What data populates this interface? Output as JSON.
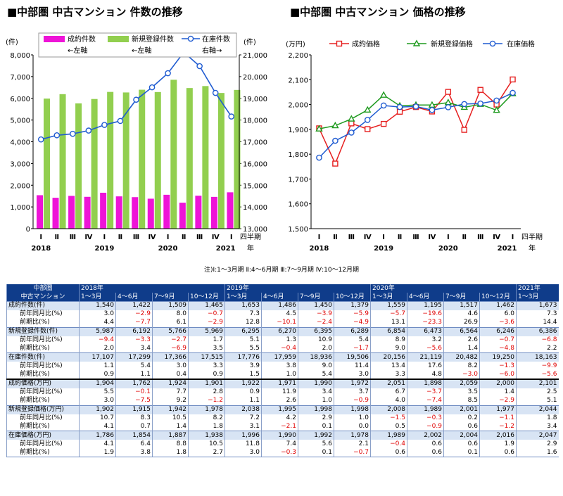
{
  "chart_data": [
    {
      "type": "bar",
      "title": "■中部圏 中古マンション 件数の推移",
      "ylabel_left": "(件)",
      "ylabel_right": "(件)",
      "ylim_left": [
        0,
        8000
      ],
      "ylim_right": [
        13000,
        21000
      ],
      "yticks_left": [
        "0",
        "1,000",
        "2,000",
        "3,000",
        "4,000",
        "5,000",
        "6,000",
        "7,000",
        "8,000"
      ],
      "yticks_right": [
        "13,000",
        "14,000",
        "15,000",
        "16,000",
        "17,000",
        "18,000",
        "19,000",
        "20,000",
        "21,000"
      ],
      "categories": [
        "Ⅰ",
        "Ⅱ",
        "Ⅲ",
        "Ⅳ",
        "Ⅰ",
        "Ⅱ",
        "Ⅲ",
        "Ⅳ",
        "Ⅰ",
        "Ⅱ",
        "Ⅲ",
        "Ⅳ",
        "Ⅰ"
      ],
      "years": [
        "2018",
        "2019",
        "2020",
        "2021"
      ],
      "x_suffix_top": "四半期",
      "x_suffix_bottom": "年",
      "series": [
        {
          "name": "成約件数",
          "sub": "←左軸",
          "type": "bar",
          "axis": "left",
          "color": "#ee14d7",
          "values": [
            1540,
            1422,
            1509,
            1465,
            1653,
            1486,
            1450,
            1379,
            1559,
            1195,
            1517,
            1462,
            1673
          ]
        },
        {
          "name": "新規登録件数",
          "sub": "←左軸",
          "type": "bar",
          "axis": "left",
          "color": "#92cf4f",
          "values": [
            5987,
            6192,
            5766,
            5969,
            6295,
            6270,
            6395,
            6289,
            6854,
            6473,
            6564,
            6246,
            6386
          ]
        },
        {
          "name": "在庫件数",
          "sub": "右軸→",
          "type": "line",
          "axis": "right",
          "color": "#1f5bd1",
          "values": [
            17107,
            17299,
            17366,
            17515,
            17776,
            17959,
            18936,
            19506,
            20156,
            21119,
            20482,
            19250,
            18163
          ]
        }
      ]
    },
    {
      "type": "line",
      "title": "■中部圏 中古マンション 価格の推移",
      "ylabel": "(万円)",
      "ylim": [
        1500,
        2200
      ],
      "yticks": [
        "1,500",
        "1,600",
        "1,700",
        "1,800",
        "1,900",
        "2,000",
        "2,100",
        "2,200"
      ],
      "categories": [
        "Ⅰ",
        "Ⅱ",
        "Ⅲ",
        "Ⅳ",
        "Ⅰ",
        "Ⅱ",
        "Ⅲ",
        "Ⅳ",
        "Ⅰ",
        "Ⅱ",
        "Ⅲ",
        "Ⅳ",
        "Ⅰ"
      ],
      "years": [
        "2018",
        "2019",
        "2020",
        "2021"
      ],
      "x_suffix_top": "四半期",
      "x_suffix_bottom": "年",
      "series": [
        {
          "name": "成約価格",
          "color": "#e62020",
          "marker": "square",
          "values": [
            1904,
            1762,
            1924,
            1901,
            1922,
            1971,
            1990,
            1972,
            2051,
            1898,
            2059,
            2000,
            2101
          ]
        },
        {
          "name": "新規登録価格",
          "color": "#1e9a1e",
          "marker": "triangle",
          "values": [
            1902,
            1915,
            1942,
            1978,
            2038,
            1995,
            1998,
            1998,
            2008,
            1989,
            2001,
            1977,
            2044
          ]
        },
        {
          "name": "在庫価格",
          "color": "#1f5bd1",
          "marker": "circle",
          "values": [
            1786,
            1854,
            1887,
            1938,
            1996,
            1990,
            1992,
            1978,
            1989,
            2002,
            2004,
            2016,
            2047
          ]
        }
      ]
    }
  ],
  "note": "注)Ⅰ:1〜3月期 Ⅱ:4〜6月期 Ⅲ:7〜9月期 Ⅳ:10〜12月期",
  "table": {
    "corner": [
      "中部圏",
      "中古マンション"
    ],
    "years": [
      {
        "label": "2018年",
        "span": 4
      },
      {
        "label": "2019年",
        "span": 4
      },
      {
        "label": "2020年",
        "span": 4
      },
      {
        "label": "2021年",
        "span": 1
      }
    ],
    "quarters": [
      "1〜3月",
      "4〜6月",
      "7〜9月",
      "10〜12月",
      "1〜3月",
      "4〜6月",
      "7〜9月",
      "10〜12月",
      "1〜3月",
      "4〜6月",
      "7〜9月",
      "10〜12月",
      "1〜3月"
    ],
    "sections": [
      {
        "label": "成約件数(件)",
        "values": [
          "1,540",
          "1,422",
          "1,509",
          "1,465",
          "1,653",
          "1,486",
          "1,450",
          "1,379",
          "1,559",
          "1,195",
          "1,517",
          "1,462",
          "1,673"
        ],
        "subs": [
          {
            "label": "前年同月比(%)",
            "values": [
              "3.0",
              "−2.9",
              "8.0",
              "−0.7",
              "7.3",
              "4.5",
              "−3.9",
              "−5.9",
              "−5.7",
              "−19.6",
              "4.6",
              "6.0",
              "7.3"
            ]
          },
          {
            "label": "前期比(%)",
            "values": [
              "4.4",
              "−7.7",
              "6.1",
              "−2.9",
              "12.8",
              "−10.1",
              "−2.4",
              "−4.9",
              "13.1",
              "−23.3",
              "26.9",
              "−3.6",
              "14.4"
            ]
          }
        ]
      },
      {
        "label": "新規登録件数(件)",
        "values": [
          "5,987",
          "6,192",
          "5,766",
          "5,969",
          "6,295",
          "6,270",
          "6,395",
          "6,289",
          "6,854",
          "6,473",
          "6,564",
          "6,246",
          "6,386"
        ],
        "subs": [
          {
            "label": "前年同月比(%)",
            "values": [
              "−9.4",
              "−3.3",
              "−2.7",
              "1.7",
              "5.1",
              "1.3",
              "10.9",
              "5.4",
              "8.9",
              "3.2",
              "2.6",
              "−0.7",
              "−6.8"
            ]
          },
          {
            "label": "前期比(%)",
            "values": [
              "2.0",
              "3.4",
              "−6.9",
              "3.5",
              "5.5",
              "−0.4",
              "2.0",
              "−1.7",
              "9.0",
              "−5.6",
              "1.4",
              "−4.8",
              "2.2"
            ]
          }
        ]
      },
      {
        "label": "在庫件数(件)",
        "values": [
          "17,107",
          "17,299",
          "17,366",
          "17,515",
          "17,776",
          "17,959",
          "18,936",
          "19,506",
          "20,156",
          "21,119",
          "20,482",
          "19,250",
          "18,163"
        ],
        "subs": [
          {
            "label": "前年同月比(%)",
            "values": [
              "1.1",
              "5.4",
              "3.0",
              "3.3",
              "3.9",
              "3.8",
              "9.0",
              "11.4",
              "13.4",
              "17.6",
              "8.2",
              "−1.3",
              "−9.9"
            ]
          },
          {
            "label": "前期比(%)",
            "values": [
              "0.9",
              "1.1",
              "0.4",
              "0.9",
              "1.5",
              "1.0",
              "5.4",
              "3.0",
              "3.3",
              "4.8",
              "−3.0",
              "−6.0",
              "−5.6"
            ]
          }
        ]
      },
      {
        "label": "成約価格(万円)",
        "thick": true,
        "values": [
          "1,904",
          "1,762",
          "1,924",
          "1,901",
          "1,922",
          "1,971",
          "1,990",
          "1,972",
          "2,051",
          "1,898",
          "2,059",
          "2,000",
          "2,101"
        ],
        "subs": [
          {
            "label": "前年同月比(%)",
            "values": [
              "5.5",
              "−0.1",
              "7.7",
              "2.8",
              "0.9",
              "11.9",
              "3.4",
              "3.7",
              "6.7",
              "−3.7",
              "3.5",
              "1.4",
              "2.5"
            ]
          },
          {
            "label": "前期比(%)",
            "values": [
              "3.0",
              "−7.5",
              "9.2",
              "−1.2",
              "1.1",
              "2.6",
              "1.0",
              "−0.9",
              "4.0",
              "−7.4",
              "8.5",
              "−2.9",
              "5.1"
            ]
          }
        ]
      },
      {
        "label": "新規登録価格(万円)",
        "values": [
          "1,902",
          "1,915",
          "1,942",
          "1,978",
          "2,038",
          "1,995",
          "1,998",
          "1,998",
          "2,008",
          "1,989",
          "2,001",
          "1,977",
          "2,044"
        ],
        "subs": [
          {
            "label": "前年同月比(%)",
            "values": [
              "10.7",
              "8.3",
              "10.5",
              "8.2",
              "7.2",
              "4.2",
              "2.9",
              "1.0",
              "−1.5",
              "−0.3",
              "0.2",
              "−1.1",
              "1.8"
            ]
          },
          {
            "label": "前期比(%)",
            "values": [
              "4.1",
              "0.7",
              "1.4",
              "1.8",
              "3.1",
              "−2.1",
              "0.1",
              "0.0",
              "0.5",
              "−0.9",
              "0.6",
              "−1.2",
              "3.4"
            ]
          }
        ]
      },
      {
        "label": "在庫価格(万円)",
        "values": [
          "1,786",
          "1,854",
          "1,887",
          "1,938",
          "1,996",
          "1,990",
          "1,992",
          "1,978",
          "1,989",
          "2,002",
          "2,004",
          "2,016",
          "2,047"
        ],
        "subs": [
          {
            "label": "前年同月比(%)",
            "values": [
              "4.1",
              "6.4",
              "8.8",
              "10.5",
              "11.8",
              "7.4",
              "5.6",
              "2.1",
              "−0.4",
              "0.6",
              "0.6",
              "1.9",
              "2.9"
            ]
          },
          {
            "label": "前期比(%)",
            "values": [
              "1.9",
              "3.8",
              "1.8",
              "2.7",
              "3.0",
              "−0.3",
              "0.1",
              "−0.7",
              "0.6",
              "0.6",
              "0.1",
              "0.6",
              "1.6"
            ]
          }
        ]
      }
    ]
  }
}
